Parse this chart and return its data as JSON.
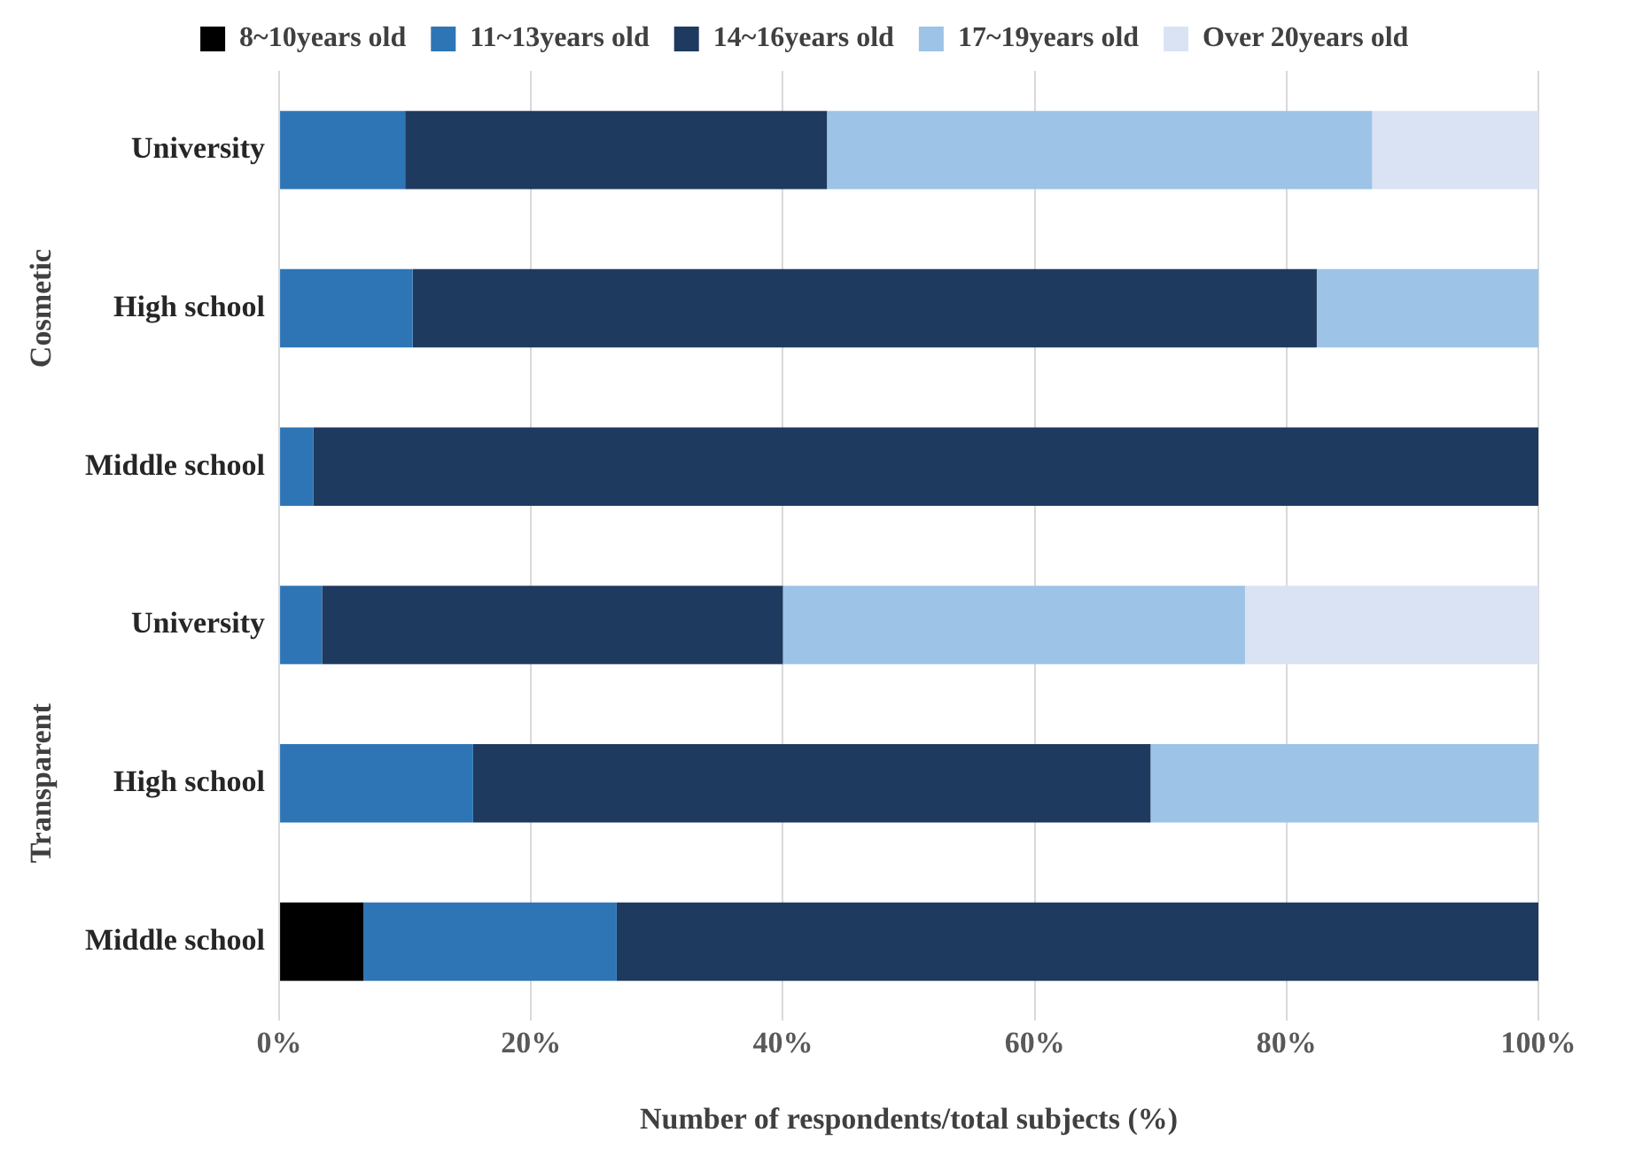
{
  "chart_data": {
    "type": "bar",
    "orientation": "horizontal",
    "stacked": true,
    "xlabel": "Number of respondents/total subjects (%)",
    "annotations": [
      "Cosmetic",
      "Transparent"
    ],
    "categories": [
      "University",
      "High school",
      "Middle school",
      "University",
      "High school",
      "Middle school"
    ],
    "series": [
      {
        "name": "8~10years old",
        "color": "#000000",
        "values": [
          0,
          0,
          0,
          0,
          0,
          6.7
        ]
      },
      {
        "name": "11~13years old",
        "color": "#2e75b6",
        "values": [
          10,
          10.6,
          2.7,
          3.4,
          15.4,
          20.1
        ]
      },
      {
        "name": "14~16years old",
        "color": "#1f3a5f",
        "values": [
          33.5,
          71.8,
          97.3,
          36.6,
          53.8,
          73.2
        ]
      },
      {
        "name": "17~19years old",
        "color": "#9dc3e6",
        "values": [
          43.3,
          17.6,
          0,
          36.7,
          30.8,
          0
        ]
      },
      {
        "name": "Over 20years old",
        "color": "#dae3f3",
        "values": [
          13.2,
          0,
          0,
          23.3,
          0,
          0
        ]
      }
    ],
    "xlim": [
      0,
      100
    ],
    "xticks": [
      {
        "value": 0,
        "label": "0%"
      },
      {
        "value": 20,
        "label": "20%"
      },
      {
        "value": 40,
        "label": "40%"
      },
      {
        "value": 60,
        "label": "60%"
      },
      {
        "value": 80,
        "label": "80%"
      },
      {
        "value": 100,
        "label": "100%"
      }
    ],
    "grid": "x",
    "legend": "top"
  }
}
